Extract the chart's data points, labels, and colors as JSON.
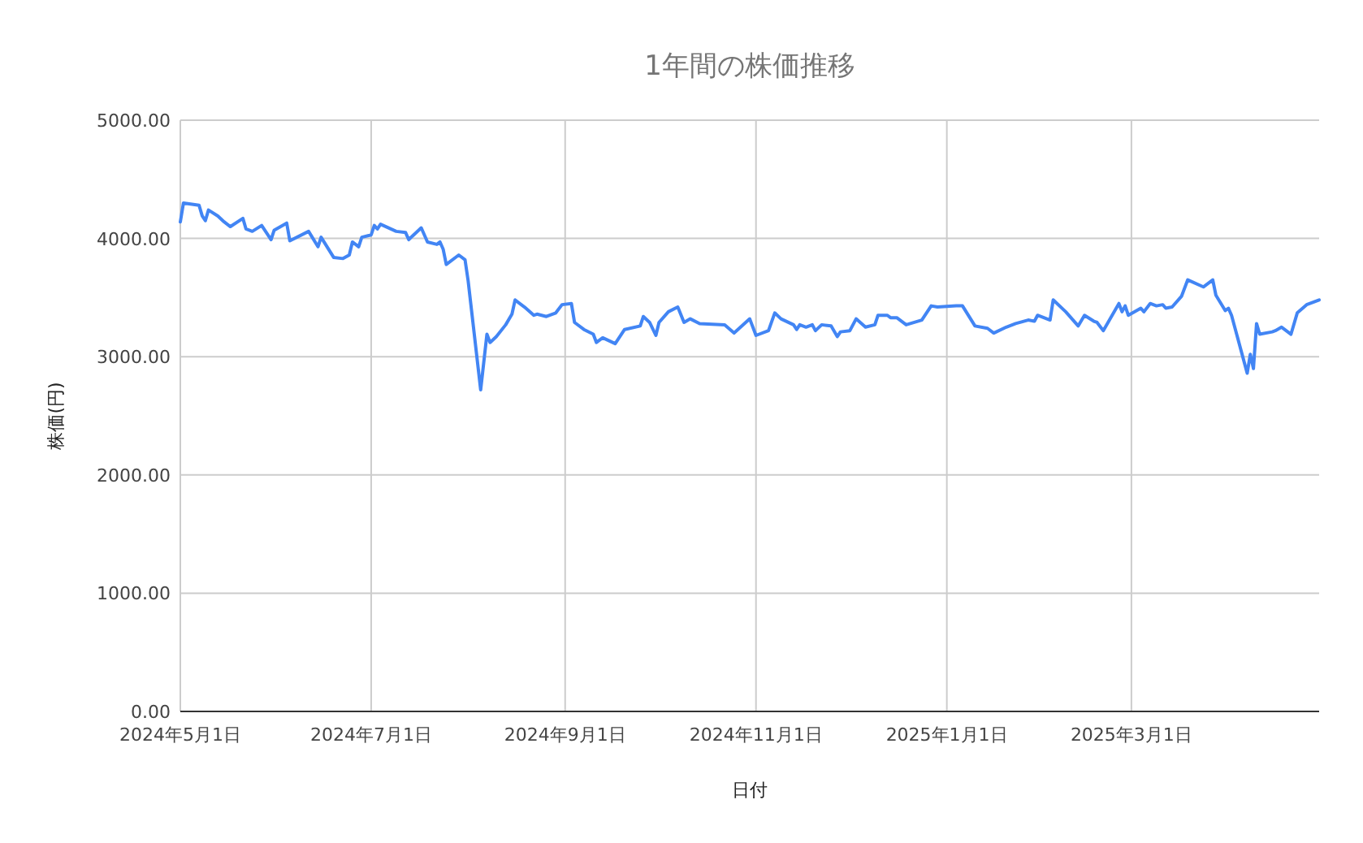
{
  "chart_data": {
    "type": "line",
    "title": "1年間の株価推移",
    "xlabel": "日付",
    "ylabel": "株価(円)",
    "xlim": [
      "2024-05-01",
      "2025-04-30"
    ],
    "ylim": [
      0,
      5000
    ],
    "xticks": [
      {
        "value": "2024-05-01",
        "label": "2024年5月1日"
      },
      {
        "value": "2024-07-01",
        "label": "2024年7月1日"
      },
      {
        "value": "2024-09-01",
        "label": "2024年9月1日"
      },
      {
        "value": "2024-11-01",
        "label": "2024年11月1日"
      },
      {
        "value": "2025-01-01",
        "label": "2025年1月1日"
      },
      {
        "value": "2025-03-01",
        "label": "2025年3月1日"
      }
    ],
    "yticks": [
      {
        "value": 0,
        "label": "0.00"
      },
      {
        "value": 1000,
        "label": "1000.00"
      },
      {
        "value": 2000,
        "label": "2000.00"
      },
      {
        "value": 3000,
        "label": "3000.00"
      },
      {
        "value": 4000,
        "label": "4000.00"
      },
      {
        "value": 5000,
        "label": "5000.00"
      }
    ],
    "grid": true,
    "x": [
      "2024-05-01",
      "2024-05-02",
      "2024-05-07",
      "2024-05-08",
      "2024-05-09",
      "2024-05-10",
      "2024-05-13",
      "2024-05-15",
      "2024-05-17",
      "2024-05-21",
      "2024-05-22",
      "2024-05-24",
      "2024-05-27",
      "2024-05-30",
      "2024-05-31",
      "2024-06-04",
      "2024-06-05",
      "2024-06-11",
      "2024-06-14",
      "2024-06-15",
      "2024-06-19",
      "2024-06-22",
      "2024-06-24",
      "2024-06-25",
      "2024-06-27",
      "2024-06-28",
      "2024-07-01",
      "2024-07-02",
      "2024-07-03",
      "2024-07-04",
      "2024-07-09",
      "2024-07-12",
      "2024-07-13",
      "2024-07-17",
      "2024-07-19",
      "2024-07-22",
      "2024-07-23",
      "2024-07-24",
      "2024-07-25",
      "2024-07-29",
      "2024-07-31",
      "2024-08-01",
      "2024-08-05",
      "2024-08-07",
      "2024-08-08",
      "2024-08-10",
      "2024-08-13",
      "2024-08-15",
      "2024-08-16",
      "2024-08-19",
      "2024-08-22",
      "2024-08-23",
      "2024-08-26",
      "2024-08-29",
      "2024-08-31",
      "2024-09-03",
      "2024-09-04",
      "2024-09-07",
      "2024-09-10",
      "2024-09-11",
      "2024-09-13",
      "2024-09-17",
      "2024-09-20",
      "2024-09-25",
      "2024-09-26",
      "2024-09-28",
      "2024-09-30",
      "2024-10-01",
      "2024-10-04",
      "2024-10-07",
      "2024-10-09",
      "2024-10-11",
      "2024-10-14",
      "2024-10-22",
      "2024-10-25",
      "2024-10-30",
      "2024-11-01",
      "2024-11-05",
      "2024-11-07",
      "2024-11-09",
      "2024-11-13",
      "2024-11-14",
      "2024-11-15",
      "2024-11-17",
      "2024-11-19",
      "2024-11-20",
      "2024-11-22",
      "2024-11-25",
      "2024-11-27",
      "2024-11-28",
      "2024-12-01",
      "2024-12-03",
      "2024-12-06",
      "2024-12-09",
      "2024-12-10",
      "2024-12-13",
      "2024-12-14",
      "2024-12-16",
      "2024-12-19",
      "2024-12-24",
      "2024-12-27",
      "2024-12-29",
      "2025-01-04",
      "2025-01-06",
      "2025-01-10",
      "2025-01-14",
      "2025-01-16",
      "2025-01-20",
      "2025-01-23",
      "2025-01-27",
      "2025-01-29",
      "2025-01-30",
      "2025-02-03",
      "2025-02-04",
      "2025-02-08",
      "2025-02-12",
      "2025-02-14",
      "2025-02-17",
      "2025-02-18",
      "2025-02-20",
      "2025-02-25",
      "2025-02-26",
      "2025-02-27",
      "2025-02-28",
      "2025-03-04",
      "2025-03-05",
      "2025-03-07",
      "2025-03-09",
      "2025-03-11",
      "2025-03-12",
      "2025-03-14",
      "2025-03-17",
      "2025-03-19",
      "2025-03-24",
      "2025-03-27",
      "2025-03-28",
      "2025-03-31",
      "2025-04-01",
      "2025-04-02",
      "2025-04-07",
      "2025-04-08",
      "2025-04-09",
      "2025-04-10",
      "2025-04-11",
      "2025-04-15",
      "2025-04-16",
      "2025-04-18",
      "2025-04-21",
      "2025-04-23",
      "2025-04-26",
      "2025-04-30"
    ],
    "series": [
      {
        "color": "#4285f4",
        "values": [
          4140,
          4300,
          4280,
          4190,
          4150,
          4240,
          4190,
          4140,
          4100,
          4170,
          4080,
          4060,
          4110,
          3990,
          4070,
          4130,
          3980,
          4060,
          3930,
          4010,
          3840,
          3830,
          3860,
          3970,
          3930,
          4010,
          4030,
          4110,
          4080,
          4120,
          4060,
          4050,
          3990,
          4090,
          3970,
          3950,
          3970,
          3910,
          3780,
          3860,
          3820,
          3640,
          2720,
          3190,
          3120,
          3170,
          3270,
          3360,
          3480,
          3420,
          3350,
          3360,
          3340,
          3370,
          3440,
          3450,
          3290,
          3230,
          3190,
          3120,
          3160,
          3110,
          3230,
          3260,
          3340,
          3290,
          3180,
          3290,
          3380,
          3420,
          3290,
          3320,
          3280,
          3270,
          3200,
          3320,
          3180,
          3220,
          3370,
          3320,
          3270,
          3230,
          3270,
          3250,
          3270,
          3220,
          3270,
          3260,
          3170,
          3210,
          3220,
          3320,
          3250,
          3270,
          3350,
          3350,
          3330,
          3330,
          3270,
          3310,
          3430,
          3420,
          3430,
          3430,
          3260,
          3240,
          3200,
          3250,
          3280,
          3310,
          3300,
          3350,
          3310,
          3480,
          3380,
          3260,
          3350,
          3300,
          3290,
          3220,
          3450,
          3380,
          3430,
          3350,
          3410,
          3380,
          3450,
          3430,
          3440,
          3410,
          3420,
          3510,
          3650,
          3590,
          3650,
          3520,
          3390,
          3410,
          3350,
          2860,
          3020,
          2900,
          3280,
          3190,
          3210,
          3220,
          3250,
          3190,
          3370,
          3440,
          3480
        ]
      }
    ]
  }
}
